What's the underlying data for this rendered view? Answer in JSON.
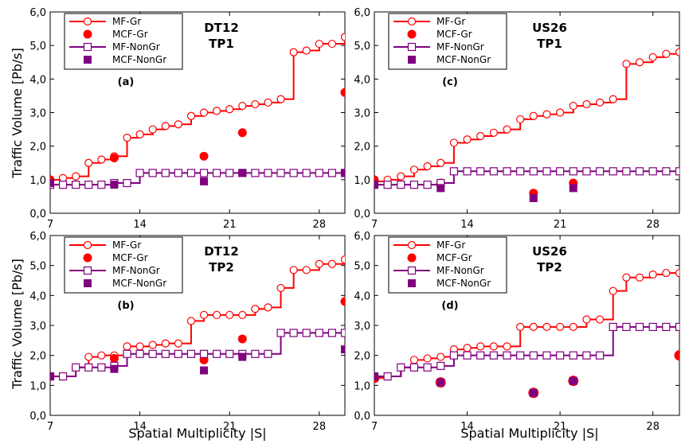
{
  "figure": {
    "ylabel": "Traffic Volume [Pb/s]",
    "xlabel": "Spatial Multiplicity |S|"
  },
  "chart_data": [
    {
      "type": "line",
      "title": "DT12\nTP1",
      "panel_label": "(a)",
      "xlabel": "",
      "ylabel": "Traffic Volume [Pb/s]",
      "xlim": [
        7,
        30
      ],
      "ylim": [
        0,
        6
      ],
      "xticks": [
        "7",
        "14",
        "21",
        "28"
      ],
      "yticks": [
        "0,0",
        "1,0",
        "2,0",
        "3,0",
        "4,0",
        "5,0",
        "6,0"
      ],
      "grid": false,
      "legend_position": "top-left",
      "series": [
        {
          "name": "MF-Gr",
          "style": "step-open-circle",
          "color": "#ff0000",
          "x": [
            7,
            8,
            9,
            10,
            11,
            12,
            13,
            14,
            15,
            16,
            17,
            18,
            19,
            20,
            21,
            22,
            23,
            24,
            25,
            26,
            27,
            28,
            29,
            30
          ],
          "y": [
            1.0,
            1.05,
            1.1,
            1.5,
            1.6,
            1.7,
            2.25,
            2.35,
            2.5,
            2.6,
            2.65,
            2.9,
            3.0,
            3.05,
            3.1,
            3.2,
            3.25,
            3.3,
            3.4,
            4.8,
            4.85,
            5.05,
            5.05,
            5.25
          ]
        },
        {
          "name": "MCF-Gr",
          "style": "filled-circle",
          "color": "#ff0000",
          "x": [
            7,
            12,
            19,
            22,
            30
          ],
          "y": [
            1.0,
            1.65,
            1.7,
            2.4,
            3.6
          ]
        },
        {
          "name": "MF-NonGr",
          "style": "step-open-square",
          "color": "#800080",
          "x": [
            7,
            8,
            9,
            10,
            11,
            12,
            13,
            14,
            15,
            16,
            17,
            18,
            19,
            20,
            21,
            22,
            23,
            24,
            25,
            26,
            27,
            28,
            29,
            30
          ],
          "y": [
            0.85,
            0.85,
            0.85,
            0.85,
            0.85,
            0.9,
            0.9,
            1.2,
            1.2,
            1.2,
            1.2,
            1.2,
            1.2,
            1.2,
            1.2,
            1.2,
            1.2,
            1.2,
            1.2,
            1.2,
            1.2,
            1.2,
            1.2,
            1.2
          ]
        },
        {
          "name": "MCF-NonGr",
          "style": "filled-square",
          "color": "#800080",
          "x": [
            7,
            12,
            19,
            22,
            30
          ],
          "y": [
            0.9,
            0.85,
            0.95,
            1.2,
            1.2
          ]
        }
      ]
    },
    {
      "type": "line",
      "title": "US26\nTP1",
      "panel_label": "(c)",
      "xlabel": "",
      "ylabel": "",
      "xlim": [
        7,
        30
      ],
      "ylim": [
        0,
        6
      ],
      "xticks": [
        "7",
        "14",
        "21",
        "28"
      ],
      "yticks": [
        "0,0",
        "1,0",
        "2,0",
        "3,0",
        "4,0",
        "5,0",
        "6,0"
      ],
      "grid": false,
      "legend_position": "top-left",
      "series": [
        {
          "name": "MF-Gr",
          "style": "step-open-circle",
          "color": "#ff0000",
          "x": [
            7,
            8,
            9,
            10,
            11,
            12,
            13,
            14,
            15,
            16,
            17,
            18,
            19,
            20,
            21,
            22,
            23,
            24,
            25,
            26,
            27,
            28,
            29,
            30
          ],
          "y": [
            0.95,
            1.0,
            1.1,
            1.3,
            1.4,
            1.5,
            2.1,
            2.2,
            2.3,
            2.4,
            2.5,
            2.8,
            2.9,
            2.95,
            3.0,
            3.2,
            3.25,
            3.3,
            3.4,
            4.45,
            4.5,
            4.65,
            4.75,
            4.8
          ]
        },
        {
          "name": "MCF-Gr",
          "style": "filled-circle",
          "color": "#ff0000",
          "x": [
            7,
            12,
            19,
            22
          ],
          "y": [
            1.0,
            0.9,
            0.6,
            0.9
          ]
        },
        {
          "name": "MF-NonGr",
          "style": "step-open-square",
          "color": "#800080",
          "x": [
            7,
            8,
            9,
            10,
            11,
            12,
            13,
            14,
            15,
            16,
            17,
            18,
            19,
            20,
            21,
            22,
            23,
            24,
            25,
            26,
            27,
            28,
            29,
            30
          ],
          "y": [
            0.85,
            0.85,
            0.85,
            0.85,
            0.85,
            0.9,
            1.25,
            1.25,
            1.25,
            1.25,
            1.25,
            1.25,
            1.25,
            1.25,
            1.25,
            1.25,
            1.25,
            1.25,
            1.25,
            1.25,
            1.25,
            1.25,
            1.25,
            1.25
          ]
        },
        {
          "name": "MCF-NonGr",
          "style": "filled-square",
          "color": "#800080",
          "x": [
            7,
            12,
            19,
            22
          ],
          "y": [
            0.85,
            0.75,
            0.45,
            0.75
          ]
        }
      ]
    },
    {
      "type": "line",
      "title": "DT12\nTP2",
      "panel_label": "(b)",
      "xlabel": "Spatial Multiplicity |S|",
      "ylabel": "Traffic Volume [Pb/s]",
      "xlim": [
        7,
        30
      ],
      "ylim": [
        0,
        6
      ],
      "xticks": [
        "7",
        "14",
        "21",
        "28"
      ],
      "yticks": [
        "0,0",
        "1,0",
        "2,0",
        "3,0",
        "4,0",
        "5,0",
        "6,0"
      ],
      "grid": false,
      "legend_position": "top-left",
      "series": [
        {
          "name": "MF-Gr",
          "style": "step-open-circle",
          "color": "#ff0000",
          "x": [
            7,
            8,
            9,
            10,
            11,
            12,
            13,
            14,
            15,
            16,
            17,
            18,
            19,
            20,
            21,
            22,
            23,
            24,
            25,
            26,
            27,
            28,
            29,
            30
          ],
          "y": [
            1.3,
            1.3,
            1.6,
            1.95,
            2.0,
            2.0,
            2.3,
            2.3,
            2.35,
            2.4,
            2.4,
            3.15,
            3.35,
            3.35,
            3.35,
            3.35,
            3.55,
            3.6,
            4.25,
            4.85,
            4.85,
            5.05,
            5.05,
            5.2
          ]
        },
        {
          "name": "MCF-Gr",
          "style": "filled-circle",
          "color": "#ff0000",
          "x": [
            7,
            12,
            19,
            22,
            30
          ],
          "y": [
            1.3,
            1.9,
            1.85,
            2.55,
            3.8
          ]
        },
        {
          "name": "MF-NonGr",
          "style": "step-open-square",
          "color": "#800080",
          "x": [
            7,
            8,
            9,
            10,
            11,
            12,
            13,
            14,
            15,
            16,
            17,
            18,
            19,
            20,
            21,
            22,
            23,
            24,
            25,
            26,
            27,
            28,
            29,
            30
          ],
          "y": [
            1.3,
            1.3,
            1.6,
            1.6,
            1.6,
            1.65,
            2.05,
            2.05,
            2.05,
            2.05,
            2.05,
            2.05,
            2.05,
            2.05,
            2.05,
            2.05,
            2.05,
            2.05,
            2.75,
            2.75,
            2.75,
            2.75,
            2.75,
            2.75
          ]
        },
        {
          "name": "MCF-NonGr",
          "style": "filled-square",
          "color": "#800080",
          "x": [
            7,
            12,
            19,
            22,
            30
          ],
          "y": [
            1.3,
            1.55,
            1.5,
            1.95,
            2.2
          ]
        }
      ]
    },
    {
      "type": "line",
      "title": "US26\nTP2",
      "panel_label": "(d)",
      "xlabel": "Spatial Multiplicity |S|",
      "ylabel": "",
      "xlim": [
        7,
        30
      ],
      "ylim": [
        0,
        6
      ],
      "xticks": [
        "7",
        "14",
        "21",
        "28"
      ],
      "yticks": [
        "0,0",
        "1,0",
        "2,0",
        "3,0",
        "4,0",
        "5,0",
        "6,0"
      ],
      "grid": false,
      "legend_position": "top-left",
      "series": [
        {
          "name": "MF-Gr",
          "style": "step-open-circle",
          "color": "#ff0000",
          "x": [
            7,
            8,
            9,
            10,
            11,
            12,
            13,
            14,
            15,
            16,
            17,
            18,
            19,
            20,
            21,
            22,
            23,
            24,
            25,
            26,
            27,
            28,
            29,
            30
          ],
          "y": [
            1.25,
            1.3,
            1.6,
            1.85,
            1.9,
            1.95,
            2.2,
            2.25,
            2.3,
            2.3,
            2.3,
            2.95,
            2.95,
            2.95,
            2.95,
            2.95,
            3.2,
            3.2,
            4.15,
            4.6,
            4.6,
            4.7,
            4.75,
            4.75
          ]
        },
        {
          "name": "MCF-Gr",
          "style": "filled-circle",
          "color": "#ff0000",
          "x": [
            7,
            12,
            19,
            22,
            30
          ],
          "y": [
            1.25,
            1.1,
            0.75,
            1.15,
            2.0
          ]
        },
        {
          "name": "MF-NonGr",
          "style": "step-open-square",
          "color": "#800080",
          "x": [
            7,
            8,
            9,
            10,
            11,
            12,
            13,
            14,
            15,
            16,
            17,
            18,
            19,
            20,
            21,
            22,
            23,
            24,
            25,
            26,
            27,
            28,
            29,
            30
          ],
          "y": [
            1.3,
            1.3,
            1.6,
            1.6,
            1.6,
            1.65,
            2.0,
            2.0,
            2.0,
            2.0,
            2.0,
            2.0,
            2.0,
            2.0,
            2.0,
            2.0,
            2.0,
            2.0,
            2.95,
            2.95,
            2.95,
            2.95,
            2.95,
            2.95
          ]
        },
        {
          "name": "MCF-NonGr",
          "style": "filled-square",
          "color": "#800080",
          "x": [
            7,
            12,
            19,
            22
          ],
          "y": [
            1.3,
            1.1,
            0.75,
            1.15
          ]
        }
      ]
    }
  ]
}
